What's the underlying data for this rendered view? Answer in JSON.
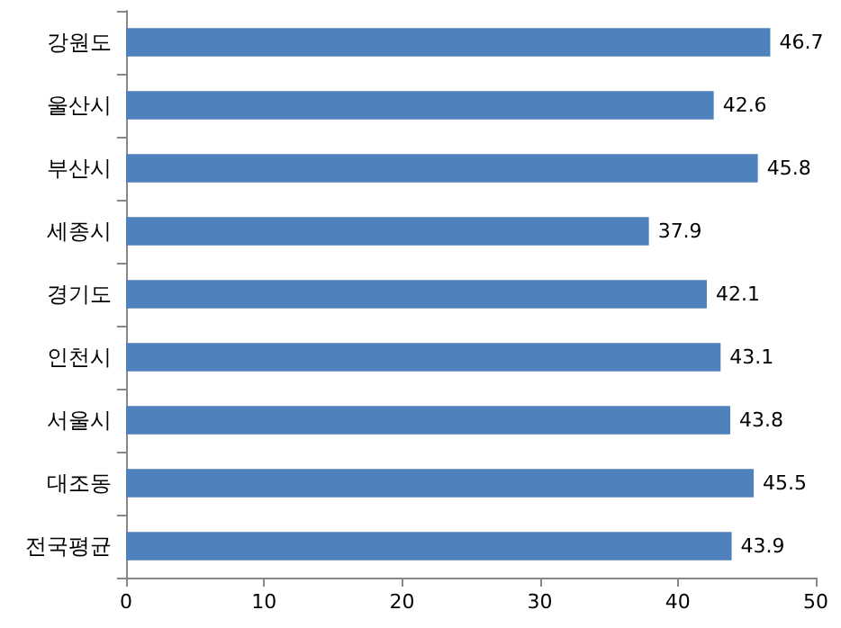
{
  "chart_data": {
    "type": "bar",
    "orientation": "horizontal",
    "categories": [
      "강원도",
      "울산시",
      "부산시",
      "세종시",
      "경기도",
      "인천시",
      "서울시",
      "대조동",
      "전국평균"
    ],
    "values": [
      46.7,
      42.6,
      45.8,
      37.9,
      42.1,
      43.1,
      43.8,
      45.5,
      43.9
    ],
    "color": "#4f81bd",
    "xlim": [
      0,
      50
    ],
    "xticks": [
      0,
      10,
      20,
      30,
      40,
      50
    ],
    "grid": false,
    "data_labels": true
  }
}
